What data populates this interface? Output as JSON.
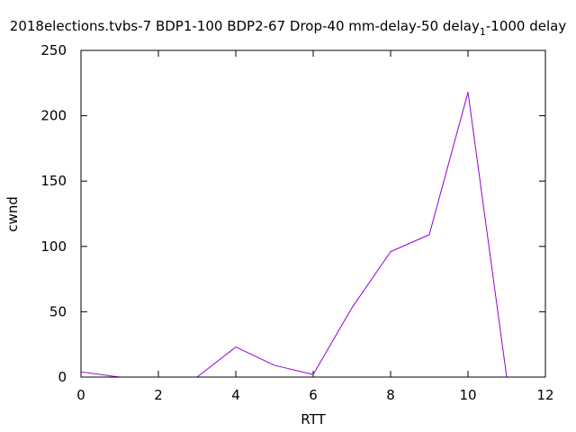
{
  "chart_data": {
    "type": "line",
    "title": "2018elections.tvbs-7 BDP1-100 BDP2-67 Drop-40 mm-delay-50 delay",
    "title_subscript": "1",
    "title_suffix": "-1000 delay",
    "xlabel": "RTT",
    "ylabel": "cwnd",
    "xlim": [
      0,
      12
    ],
    "ylim": [
      0,
      250
    ],
    "xticks": [
      0,
      2,
      4,
      6,
      8,
      10,
      12
    ],
    "yticks": [
      0,
      50,
      100,
      150,
      200,
      250
    ],
    "grid": false,
    "series": [
      {
        "color": "#9400d3",
        "x": [
          0,
          1,
          2,
          3,
          4,
          5,
          6,
          7,
          8,
          9,
          10,
          11
        ],
        "y": [
          4,
          0,
          0,
          0,
          23,
          9,
          2,
          53,
          96,
          109,
          218,
          0
        ]
      }
    ]
  }
}
